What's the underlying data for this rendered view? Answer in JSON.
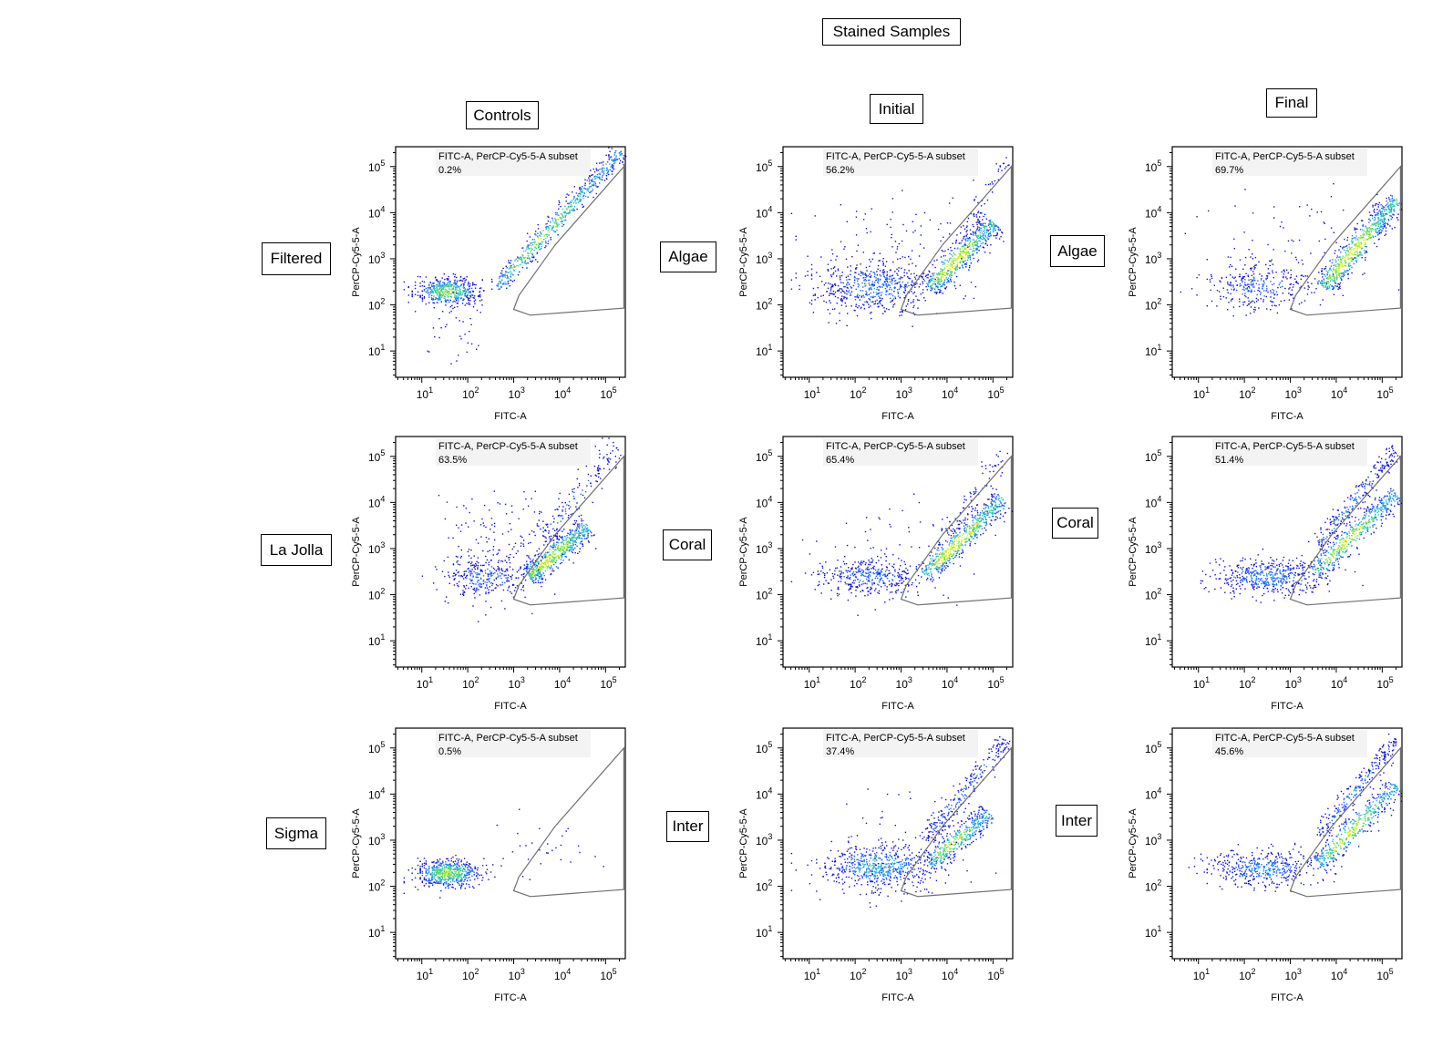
{
  "title": "Stained Samples",
  "column_headers": [
    "Controls",
    "Initial",
    "Final"
  ],
  "row_labels": [
    [
      "Filtered",
      "Algae",
      "Algae"
    ],
    [
      "La Jolla",
      "Coral",
      "Coral"
    ],
    [
      "Sigma",
      "Inter",
      "Inter"
    ]
  ],
  "chart_data": [
    {
      "type": "scatter",
      "row": 0,
      "col": 0,
      "sample": "Filtered",
      "gate_label": "FITC-A, PerCP-Cy5-5-A subset",
      "gate_percent": "0.2%",
      "xlabel": "FITC-A",
      "ylabel": "PerCP-Cy5-5-A",
      "xscale": "log",
      "yscale": "log",
      "xlim": [
        3,
        260000
      ],
      "ylim": [
        3,
        260000
      ],
      "xticks": [
        "10^1",
        "10^2",
        "10^3",
        "10^4",
        "10^5"
      ],
      "yticks": [
        "10^1",
        "10^2",
        "10^3",
        "10^4",
        "10^5"
      ],
      "gate": [
        [
          1000,
          80
        ],
        [
          1300,
          160
        ],
        [
          8000,
          2000
        ],
        [
          250000,
          100000
        ],
        [
          250000,
          85
        ],
        [
          2300,
          60
        ]
      ],
      "populations": [
        {
          "kind": "blob",
          "center": [
            35,
            200
          ],
          "spread_decades": [
            0.35,
            0.15
          ],
          "events": 500,
          "peak": 0.8
        },
        {
          "kind": "band",
          "from": [
            400,
            250
          ],
          "to": [
            220000,
            220000
          ],
          "width_decades": 0.1,
          "events": 600,
          "peak": 0.75
        },
        {
          "kind": "blob",
          "center": [
            60,
            40
          ],
          "spread_decades": [
            0.4,
            0.4
          ],
          "events": 40,
          "peak": 0.1
        }
      ]
    },
    {
      "type": "scatter",
      "row": 0,
      "col": 1,
      "sample": "Algae",
      "gate_label": "FITC-A, PerCP-Cy5-5-A subset",
      "gate_percent": "56.2%",
      "xlabel": "FITC-A",
      "ylabel": "PerCP-Cy5-5-A",
      "xscale": "log",
      "yscale": "log",
      "xlim": [
        3,
        260000
      ],
      "ylim": [
        3,
        260000
      ],
      "xticks": [
        "10^1",
        "10^2",
        "10^3",
        "10^4",
        "10^5"
      ],
      "yticks": [
        "10^1",
        "10^2",
        "10^3",
        "10^4",
        "10^5"
      ],
      "gate": [
        [
          1000,
          80
        ],
        [
          1300,
          160
        ],
        [
          8000,
          2000
        ],
        [
          250000,
          100000
        ],
        [
          250000,
          85
        ],
        [
          2300,
          60
        ]
      ],
      "populations": [
        {
          "kind": "blob",
          "center": [
            250,
            250
          ],
          "spread_decades": [
            0.7,
            0.3
          ],
          "events": 600,
          "peak": 0.35
        },
        {
          "kind": "band",
          "from": [
            4000,
            250
          ],
          "to": [
            100000,
            6300
          ],
          "width_decades": 0.13,
          "events": 600,
          "peak": 1
        },
        {
          "kind": "blob",
          "center": [
            1000,
            3000
          ],
          "spread_decades": [
            1,
            0.6
          ],
          "events": 80,
          "peak": 0.1
        },
        {
          "kind": "band",
          "from": [
            20000,
            2000
          ],
          "to": [
            200000,
            160000
          ],
          "width_decades": 0.1,
          "events": 60,
          "peak": 0.15
        }
      ]
    },
    {
      "type": "scatter",
      "row": 0,
      "col": 2,
      "sample": "Algae",
      "gate_label": "FITC-A, PerCP-Cy5-5-A subset",
      "gate_percent": "69.7%",
      "xlabel": "FITC-A",
      "ylabel": "PerCP-Cy5-5-A",
      "xscale": "log",
      "yscale": "log",
      "xlim": [
        3,
        260000
      ],
      "ylim": [
        3,
        260000
      ],
      "xticks": [
        "10^1",
        "10^2",
        "10^3",
        "10^4",
        "10^5"
      ],
      "yticks": [
        "10^1",
        "10^2",
        "10^3",
        "10^4",
        "10^5"
      ],
      "gate": [
        [
          1000,
          80
        ],
        [
          1300,
          160
        ],
        [
          8000,
          2000
        ],
        [
          250000,
          100000
        ],
        [
          250000,
          85
        ],
        [
          2300,
          60
        ]
      ],
      "populations": [
        {
          "kind": "blob",
          "center": [
            200,
            250
          ],
          "spread_decades": [
            0.6,
            0.25
          ],
          "events": 300,
          "peak": 0.3
        },
        {
          "kind": "band",
          "from": [
            5000,
            250
          ],
          "to": [
            200000,
            20000
          ],
          "width_decades": 0.13,
          "events": 700,
          "peak": 1
        },
        {
          "kind": "blob",
          "center": [
            1000,
            2000
          ],
          "spread_decades": [
            1,
            0.6
          ],
          "events": 80,
          "peak": 0.1
        }
      ]
    },
    {
      "type": "scatter",
      "row": 1,
      "col": 0,
      "sample": "La Jolla",
      "gate_label": "FITC-A, PerCP-Cy5-5-A subset",
      "gate_percent": "63.5%",
      "xlabel": "FITC-A",
      "ylabel": "PerCP-Cy5-5-A",
      "xscale": "log",
      "yscale": "log",
      "xlim": [
        3,
        260000
      ],
      "ylim": [
        3,
        260000
      ],
      "xticks": [
        "10^1",
        "10^2",
        "10^3",
        "10^4",
        "10^5"
      ],
      "yticks": [
        "10^1",
        "10^2",
        "10^3",
        "10^4",
        "10^5"
      ],
      "gate": [
        [
          1000,
          80
        ],
        [
          1300,
          160
        ],
        [
          8000,
          2000
        ],
        [
          250000,
          100000
        ],
        [
          250000,
          85
        ],
        [
          2300,
          60
        ]
      ],
      "populations": [
        {
          "kind": "blob",
          "center": [
            250,
            250
          ],
          "spread_decades": [
            0.5,
            0.25
          ],
          "events": 300,
          "peak": 0.3
        },
        {
          "kind": "band",
          "from": [
            2000,
            250
          ],
          "to": [
            40000,
            3200
          ],
          "width_decades": 0.13,
          "events": 600,
          "peak": 1
        },
        {
          "kind": "band",
          "from": [
            3200,
            1600
          ],
          "to": [
            200000,
            160000
          ],
          "width_decades": 0.15,
          "events": 150,
          "peak": 0.25
        },
        {
          "kind": "blob",
          "center": [
            630,
            1600
          ],
          "spread_decades": [
            0.6,
            0.5
          ],
          "events": 150,
          "peak": 0.1
        }
      ]
    },
    {
      "type": "scatter",
      "row": 1,
      "col": 1,
      "sample": "Coral",
      "gate_label": "FITC-A, PerCP-Cy5-5-A subset",
      "gate_percent": "65.4%",
      "xlabel": "FITC-A",
      "ylabel": "PerCP-Cy5-5-A",
      "xscale": "log",
      "yscale": "log",
      "xlim": [
        3,
        260000
      ],
      "ylim": [
        3,
        260000
      ],
      "xticks": [
        "10^1",
        "10^2",
        "10^3",
        "10^4",
        "10^5"
      ],
      "yticks": [
        "10^1",
        "10^2",
        "10^3",
        "10^4",
        "10^5"
      ],
      "gate": [
        [
          1000,
          80
        ],
        [
          1300,
          160
        ],
        [
          8000,
          2000
        ],
        [
          250000,
          100000
        ],
        [
          250000,
          85
        ],
        [
          2300,
          60
        ]
      ],
      "populations": [
        {
          "kind": "blob",
          "center": [
            200,
            250
          ],
          "spread_decades": [
            0.6,
            0.2
          ],
          "events": 400,
          "peak": 0.35
        },
        {
          "kind": "band",
          "from": [
            3200,
            280
          ],
          "to": [
            160000,
            12600
          ],
          "width_decades": 0.12,
          "events": 600,
          "peak": 1
        },
        {
          "kind": "band",
          "from": [
            10000,
            2000
          ],
          "to": [
            200000,
            126000
          ],
          "width_decades": 0.12,
          "events": 80,
          "peak": 0.2
        },
        {
          "kind": "blob",
          "center": [
            1000,
            1000
          ],
          "spread_decades": [
            1,
            0.6
          ],
          "events": 60,
          "peak": 0.1
        }
      ]
    },
    {
      "type": "scatter",
      "row": 1,
      "col": 2,
      "sample": "Coral",
      "gate_label": "FITC-A, PerCP-Cy5-5-A subset",
      "gate_percent": "51.4%",
      "xlabel": "FITC-A",
      "ylabel": "PerCP-Cy5-5-A",
      "xscale": "log",
      "yscale": "log",
      "xlim": [
        3,
        260000
      ],
      "ylim": [
        3,
        260000
      ],
      "xticks": [
        "10^1",
        "10^2",
        "10^3",
        "10^4",
        "10^5"
      ],
      "yticks": [
        "10^1",
        "10^2",
        "10^3",
        "10^4",
        "10^5"
      ],
      "gate": [
        [
          1000,
          80
        ],
        [
          1300,
          160
        ],
        [
          8000,
          2000
        ],
        [
          250000,
          100000
        ],
        [
          250000,
          85
        ],
        [
          2300,
          60
        ]
      ],
      "populations": [
        {
          "kind": "blob",
          "center": [
            320,
            250
          ],
          "spread_decades": [
            0.6,
            0.2
          ],
          "events": 500,
          "peak": 0.4
        },
        {
          "kind": "band",
          "from": [
            3200,
            320
          ],
          "to": [
            200000,
            16000
          ],
          "width_decades": 0.12,
          "events": 500,
          "peak": 0.9
        },
        {
          "kind": "band",
          "from": [
            4000,
            1260
          ],
          "to": [
            200000,
            160000
          ],
          "width_decades": 0.1,
          "events": 250,
          "peak": 0.35
        }
      ]
    },
    {
      "type": "scatter",
      "row": 2,
      "col": 0,
      "sample": "Sigma",
      "gate_label": "FITC-A, PerCP-Cy5-5-A subset",
      "gate_percent": "0.5%",
      "xlabel": "FITC-A",
      "ylabel": "PerCP-Cy5-5-A",
      "xscale": "log",
      "yscale": "log",
      "xlim": [
        3,
        260000
      ],
      "ylim": [
        3,
        260000
      ],
      "xticks": [
        "10^1",
        "10^2",
        "10^3",
        "10^4",
        "10^5"
      ],
      "yticks": [
        "10^1",
        "10^2",
        "10^3",
        "10^4",
        "10^5"
      ],
      "gate": [
        [
          1000,
          80
        ],
        [
          1300,
          160
        ],
        [
          8000,
          2000
        ],
        [
          250000,
          100000
        ],
        [
          250000,
          85
        ],
        [
          2300,
          60
        ]
      ],
      "populations": [
        {
          "kind": "blob",
          "center": [
            35,
            200
          ],
          "spread_decades": [
            0.35,
            0.15
          ],
          "events": 600,
          "peak": 0.85
        },
        {
          "kind": "blob",
          "center": [
            3200,
            630
          ],
          "spread_decades": [
            0.6,
            0.4
          ],
          "events": 30,
          "peak": 0.1
        }
      ]
    },
    {
      "type": "scatter",
      "row": 2,
      "col": 1,
      "sample": "Inter",
      "gate_label": "FITC-A, PerCP-Cy5-5-A subset",
      "gate_percent": "37.4%",
      "xlabel": "FITC-A",
      "ylabel": "PerCP-Cy5-5-A",
      "xscale": "log",
      "yscale": "log",
      "xlim": [
        3,
        260000
      ],
      "ylim": [
        3,
        260000
      ],
      "xticks": [
        "10^1",
        "10^2",
        "10^3",
        "10^4",
        "10^5"
      ],
      "yticks": [
        "10^1",
        "10^2",
        "10^3",
        "10^4",
        "10^5"
      ],
      "gate": [
        [
          1000,
          80
        ],
        [
          1300,
          160
        ],
        [
          8000,
          2000
        ],
        [
          250000,
          100000
        ],
        [
          250000,
          85
        ],
        [
          2300,
          60
        ]
      ],
      "populations": [
        {
          "kind": "blob",
          "center": [
            320,
            280
          ],
          "spread_decades": [
            0.6,
            0.25
          ],
          "events": 600,
          "peak": 0.5
        },
        {
          "kind": "band",
          "from": [
            4000,
            320
          ],
          "to": [
            80000,
            4000
          ],
          "width_decades": 0.12,
          "events": 400,
          "peak": 0.85
        },
        {
          "kind": "band",
          "from": [
            3200,
            1000
          ],
          "to": [
            200000,
            160000
          ],
          "width_decades": 0.12,
          "events": 250,
          "peak": 0.3
        },
        {
          "kind": "blob",
          "center": [
            1000,
            1000
          ],
          "spread_decades": [
            1,
            0.6
          ],
          "events": 80,
          "peak": 0.1
        }
      ]
    },
    {
      "type": "scatter",
      "row": 2,
      "col": 2,
      "sample": "Inter",
      "gate_label": "FITC-A, PerCP-Cy5-5-A subset",
      "gate_percent": "45.6%",
      "xlabel": "FITC-A",
      "ylabel": "PerCP-Cy5-5-A",
      "xscale": "log",
      "yscale": "log",
      "xlim": [
        3,
        260000
      ],
      "ylim": [
        3,
        260000
      ],
      "xticks": [
        "10^1",
        "10^2",
        "10^3",
        "10^4",
        "10^5"
      ],
      "yticks": [
        "10^1",
        "10^2",
        "10^3",
        "10^4",
        "10^5"
      ],
      "gate": [
        [
          1000,
          80
        ],
        [
          1300,
          160
        ],
        [
          8000,
          2000
        ],
        [
          250000,
          100000
        ],
        [
          250000,
          85
        ],
        [
          2300,
          60
        ]
      ],
      "populations": [
        {
          "kind": "blob",
          "center": [
            250,
            250
          ],
          "spread_decades": [
            0.6,
            0.2
          ],
          "events": 450,
          "peak": 0.4
        },
        {
          "kind": "band",
          "from": [
            4000,
            320
          ],
          "to": [
            200000,
            16000
          ],
          "width_decades": 0.12,
          "events": 450,
          "peak": 0.9
        },
        {
          "kind": "band",
          "from": [
            4000,
            1260
          ],
          "to": [
            200000,
            160000
          ],
          "width_decades": 0.1,
          "events": 250,
          "peak": 0.35
        }
      ]
    }
  ],
  "colors": {
    "density_scale": [
      "#1010d8",
      "#2060ff",
      "#20b0e0",
      "#30d090",
      "#80e040",
      "#e0f020"
    ],
    "gate": "#707070",
    "gate_box": "#f3f3f3"
  }
}
